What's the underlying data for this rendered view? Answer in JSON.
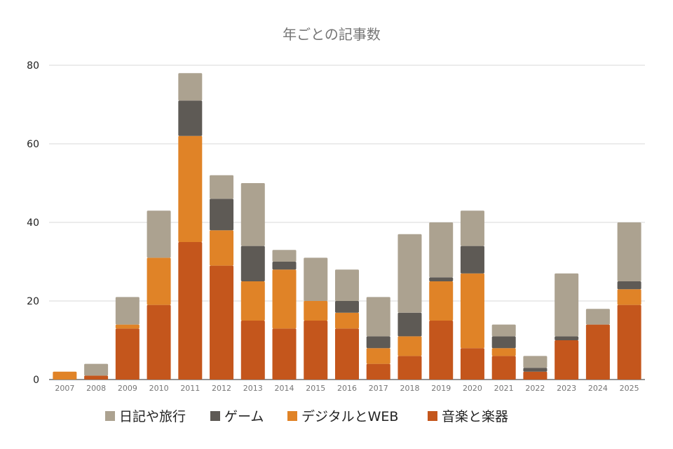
{
  "chart_data": {
    "type": "bar",
    "stacked": true,
    "title": "年ごとの記事数",
    "xlabel": "",
    "ylabel": "",
    "ylim": [
      0,
      80
    ],
    "yticks": [
      0,
      20,
      40,
      60,
      80
    ],
    "grid": true,
    "legend_position": "bottom",
    "categories": [
      "2007",
      "2008",
      "2009",
      "2010",
      "2011",
      "2012",
      "2013",
      "2014",
      "2015",
      "2016",
      "2017",
      "2018",
      "2019",
      "2020",
      "2021",
      "2022",
      "2023",
      "2024",
      "2025"
    ],
    "series": [
      {
        "name": "音楽と楽器",
        "color": "#c4561c",
        "values": [
          0,
          1,
          13,
          19,
          35,
          29,
          15,
          13,
          15,
          13,
          4,
          6,
          15,
          8,
          6,
          2,
          10,
          14,
          19
        ]
      },
      {
        "name": "デジタルとWEB",
        "color": "#e08327",
        "values": [
          2,
          0,
          1,
          12,
          27,
          9,
          10,
          15,
          5,
          4,
          4,
          5,
          10,
          19,
          2,
          0,
          0,
          0,
          4
        ]
      },
      {
        "name": "ゲーム",
        "color": "#5e5a55",
        "values": [
          0,
          0,
          0,
          0,
          9,
          8,
          9,
          2,
          0,
          3,
          3,
          6,
          1,
          7,
          3,
          1,
          1,
          0,
          2
        ]
      },
      {
        "name": "日記や旅行",
        "color": "#aca290",
        "values": [
          0,
          3,
          7,
          12,
          7,
          6,
          16,
          3,
          11,
          8,
          10,
          20,
          14,
          9,
          3,
          3,
          16,
          4,
          15
        ]
      }
    ],
    "legend_order": [
      3,
      2,
      1,
      0
    ]
  }
}
